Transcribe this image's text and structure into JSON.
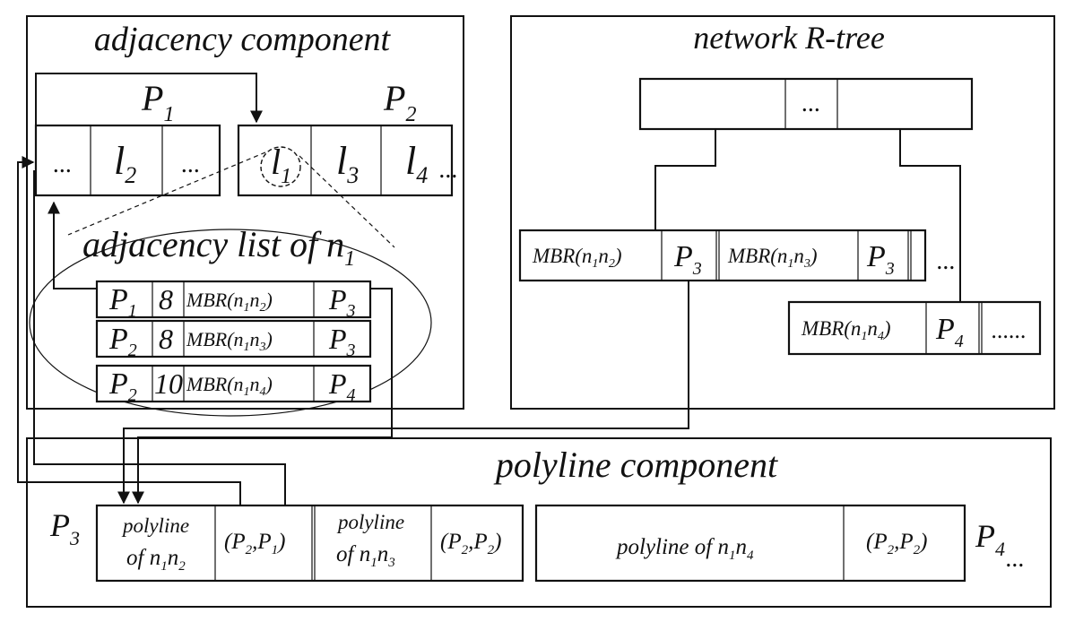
{
  "adjacency_component": {
    "title": "adjacency component",
    "page1": {
      "label": "P",
      "label_sub": "1",
      "cells": [
        {
          "main": "...",
          "sub": ""
        },
        {
          "main": "l",
          "sub": "2"
        },
        {
          "main": "...",
          "sub": ""
        }
      ]
    },
    "page2": {
      "label": "P",
      "label_sub": "2",
      "cells": [
        {
          "main": "l",
          "sub": "1"
        },
        {
          "main": "l",
          "sub": "3"
        },
        {
          "main": "l",
          "sub": "4"
        }
      ],
      "trailing": "..."
    },
    "adjacency_list": {
      "title": "adjacency list of n",
      "title_sub": "1",
      "rows": [
        {
          "page": "P",
          "page_sub": "1",
          "weight": "8",
          "mbr_a": "1",
          "mbr_b": "2",
          "ptr": "P",
          "ptr_sub": "3"
        },
        {
          "page": "P",
          "page_sub": "2",
          "weight": "8",
          "mbr_a": "1",
          "mbr_b": "3",
          "ptr": "P",
          "ptr_sub": "3"
        },
        {
          "page": "P",
          "page_sub": "2",
          "weight": "10",
          "mbr_a": "1",
          "mbr_b": "4",
          "ptr": "P",
          "ptr_sub": "4"
        }
      ]
    }
  },
  "network_rtree": {
    "title": "network R-tree",
    "root_cell": "...",
    "leaf1": {
      "entries": [
        {
          "mbr_a": "1",
          "mbr_b": "2",
          "ptr": "P",
          "ptr_sub": "3"
        },
        {
          "mbr_a": "1",
          "mbr_b": "3",
          "ptr": "P",
          "ptr_sub": "3"
        }
      ],
      "trailing": "..."
    },
    "leaf2": {
      "entries": [
        {
          "mbr_a": "1",
          "mbr_b": "4",
          "ptr": "P",
          "ptr_sub": "4"
        }
      ],
      "trailing": "......"
    }
  },
  "polyline_component": {
    "title": "polyline component",
    "page3": {
      "label": "P",
      "label_sub": "3",
      "records": [
        {
          "line1": "polyline",
          "line2": "of n",
          "a": "1",
          "mid": "n",
          "b": "2",
          "pages": {
            "x": "2",
            "y": "1"
          }
        },
        {
          "line1": "polyline",
          "line2": "of n",
          "a": "1",
          "mid": "n",
          "b": "3",
          "pages": {
            "x": "2",
            "y": "2"
          }
        }
      ]
    },
    "page4": {
      "label": "P",
      "label_sub": "4",
      "trailing": "...",
      "records": [
        {
          "text": "polyline of n",
          "a": "1",
          "mid": "n",
          "b": "4",
          "pages": {
            "x": "2",
            "y": "2"
          }
        }
      ]
    }
  }
}
